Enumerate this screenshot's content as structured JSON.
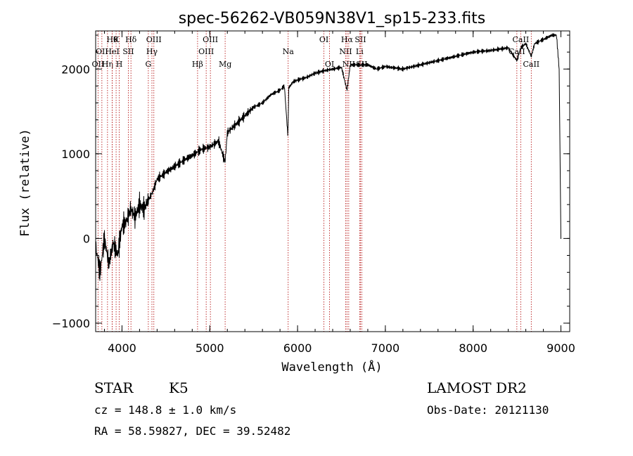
{
  "chart_data": {
    "type": "line",
    "title": "spec-56262-VB059N38V1_sp15-233.fits",
    "xlabel": "Wavelength (Å)",
    "ylabel": "Flux (relative)",
    "xlim": [
      3700,
      9100
    ],
    "ylim": [
      -1100,
      2450
    ],
    "x_ticks": [
      4000,
      5000,
      6000,
      7000,
      8000,
      9000
    ],
    "x_tick_labels": [
      "4000",
      "5000",
      "6000",
      "7000",
      "8000",
      "9000"
    ],
    "y_ticks": [
      -1000,
      0,
      1000,
      2000
    ],
    "y_tick_labels": [
      "−1000",
      "0",
      "1000",
      "2000"
    ],
    "grid": false,
    "series": [
      {
        "x": [
          3700,
          3750,
          3800,
          3850,
          3900,
          3950,
          4000,
          4050,
          4100,
          4150,
          4200,
          4250,
          4300,
          4350,
          4400,
          4500,
          4600,
          4700,
          4800,
          4900,
          5000,
          5100,
          5175,
          5200,
          5300,
          5400,
          5500,
          5600,
          5700,
          5800,
          5850,
          5890,
          5900,
          5950,
          6000,
          6100,
          6200,
          6300,
          6400,
          6500,
          6563,
          6600,
          6700,
          6800,
          6900,
          7000,
          7200,
          7400,
          7600,
          7800,
          8000,
          8200,
          8400,
          8498,
          8542,
          8600,
          8662,
          8700,
          8800,
          8900,
          8950,
          8980,
          9000
        ],
        "y": [
          -100,
          -400,
          0,
          -300,
          -50,
          -200,
          150,
          200,
          350,
          250,
          400,
          350,
          450,
          550,
          700,
          780,
          850,
          920,
          980,
          1050,
          1080,
          1150,
          900,
          1250,
          1350,
          1450,
          1550,
          1600,
          1700,
          1750,
          1800,
          1200,
          1780,
          1850,
          1870,
          1900,
          1950,
          1980,
          2000,
          2020,
          1750,
          2050,
          2050,
          2050,
          2000,
          2030,
          2000,
          2050,
          2100,
          2150,
          2200,
          2220,
          2250,
          2100,
          2250,
          2300,
          2150,
          2300,
          2350,
          2400,
          2400,
          2000,
          0
        ]
      }
    ],
    "lines": [
      {
        "x": 3727,
        "label": "OII",
        "row": 2
      },
      {
        "x": 3771,
        "label": "OII",
        "row": 1
      },
      {
        "x": 3835,
        "label": "Hη",
        "row": 2
      },
      {
        "x": 3889,
        "label": "Hθ",
        "row": 0
      },
      {
        "x": 3889,
        "label": "HeI",
        "row": 1
      },
      {
        "x": 3933,
        "label": "K",
        "row": 0
      },
      {
        "x": 3969,
        "label": "H",
        "row": 2
      },
      {
        "x": 4072,
        "label": "SII",
        "row": 1
      },
      {
        "x": 4102,
        "label": "Hδ",
        "row": 0
      },
      {
        "x": 4300,
        "label": "G",
        "row": 2
      },
      {
        "x": 4341,
        "label": "Hγ",
        "row": 1
      },
      {
        "x": 4363,
        "label": "OIII",
        "row": 0
      },
      {
        "x": 4861,
        "label": "Hβ",
        "row": 2
      },
      {
        "x": 4959,
        "label": "OIII",
        "row": 1
      },
      {
        "x": 5007,
        "label": "OIII",
        "row": 0
      },
      {
        "x": 5175,
        "label": "Mg",
        "row": 2
      },
      {
        "x": 5893,
        "label": "Na",
        "row": 1
      },
      {
        "x": 6300,
        "label": "OI",
        "row": 0
      },
      {
        "x": 6364,
        "label": "OI",
        "row": 2
      },
      {
        "x": 6548,
        "label": "NII",
        "row": 1
      },
      {
        "x": 6563,
        "label": "Hα",
        "row": 0
      },
      {
        "x": 6583,
        "label": "NII",
        "row": 2
      },
      {
        "x": 6707,
        "label": "Li",
        "row": 1
      },
      {
        "x": 6716,
        "label": "SII",
        "row": 0
      },
      {
        "x": 6731,
        "label": "SII",
        "row": 2
      },
      {
        "x": 8498,
        "label": "CaII",
        "row": 1
      },
      {
        "x": 8542,
        "label": "CaII",
        "row": 0
      },
      {
        "x": 8662,
        "label": "CaII",
        "row": 2
      }
    ]
  },
  "info": {
    "class": "STAR",
    "subclass": "K5",
    "cz": "cz = 148.8 ± 1.0 km/s",
    "radec": "RA =  58.59827, DEC =  39.52482",
    "survey": "LAMOST DR2",
    "obsdate": "Obs-Date: 20121130"
  }
}
